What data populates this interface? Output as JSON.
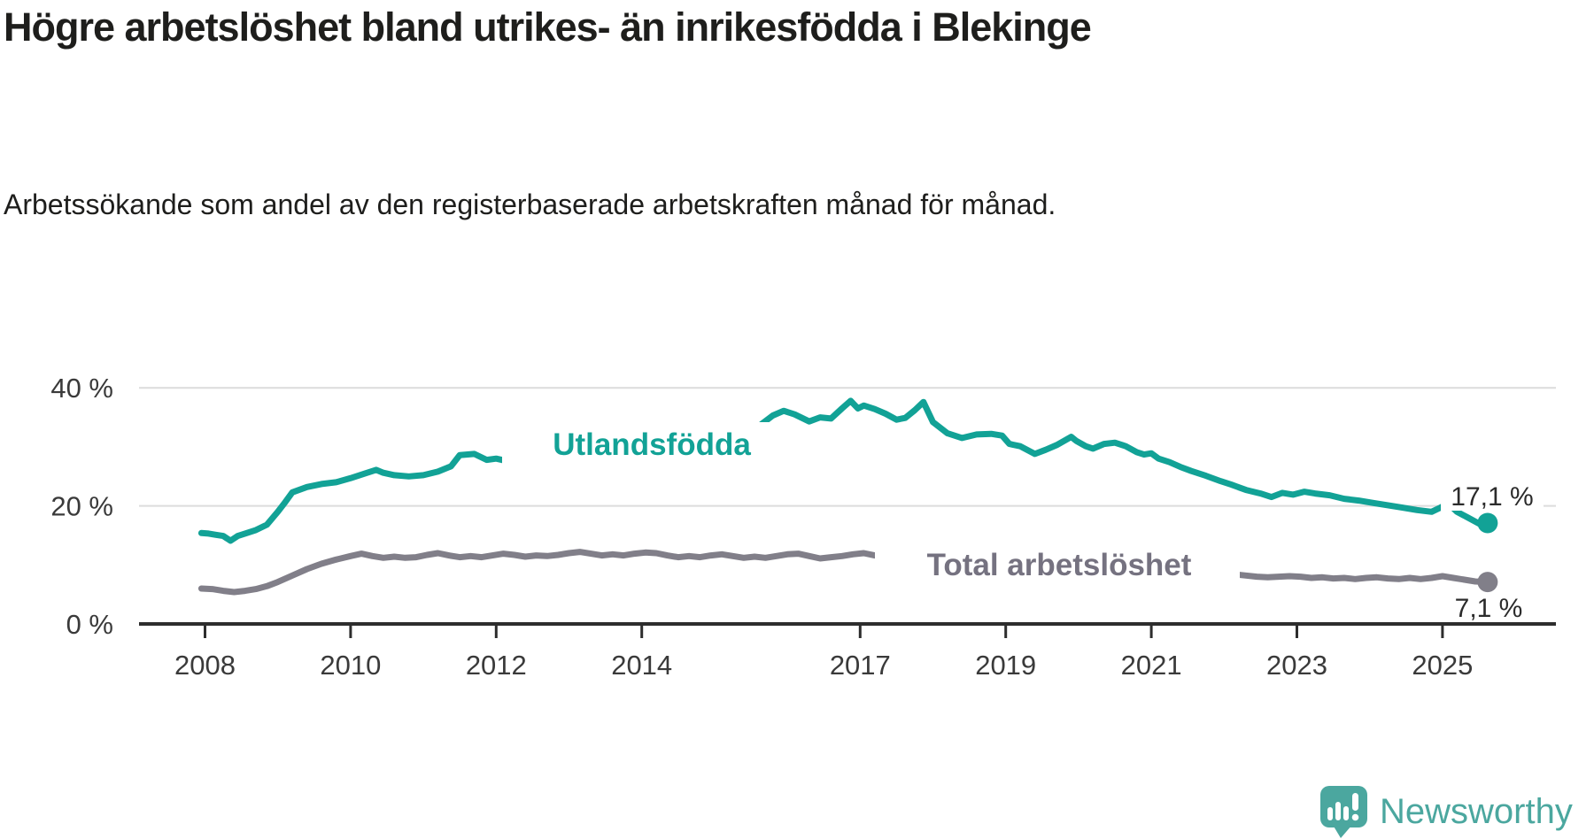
{
  "header": {
    "title": "Högre arbetslöshet bland utrikes- än inrikesfödda i Blekinge",
    "subtitle": "Arbetssökande som andel av den registerbaserade arbetskraften månad för månad."
  },
  "chart_data": {
    "type": "line",
    "title": "Högre arbetslöshet bland utrikes- än inrikesfödda i Blekinge",
    "subtitle": "Arbetssökande som andel av den registerbaserade arbetskraften månad för månad.",
    "unit": "%",
    "grid": "horizontal-only",
    "x_axis": {
      "ticks": [
        2008,
        2010,
        2012,
        2014,
        2017,
        2019,
        2021,
        2023,
        2025
      ]
    },
    "y_axis": {
      "range": [
        0,
        44
      ],
      "ticks": [
        {
          "value": 0,
          "label": "0 %"
        },
        {
          "value": 20,
          "label": "20 %"
        },
        {
          "value": 40,
          "label": "40 %"
        }
      ]
    },
    "series": [
      {
        "name": "Utlandsfödda",
        "color": "#12a296",
        "end_label": "17,1 %",
        "end_value": 17.1,
        "points": [
          [
            2007.95,
            15.4
          ],
          [
            2008.05,
            15.3
          ],
          [
            2008.15,
            15.1
          ],
          [
            2008.25,
            14.9
          ],
          [
            2008.35,
            14.1
          ],
          [
            2008.45,
            14.9
          ],
          [
            2008.55,
            15.3
          ],
          [
            2008.7,
            15.9
          ],
          [
            2008.85,
            16.8
          ],
          [
            2009.0,
            19.0
          ],
          [
            2009.1,
            20.6
          ],
          [
            2009.2,
            22.3
          ],
          [
            2009.4,
            23.2
          ],
          [
            2009.6,
            23.7
          ],
          [
            2009.8,
            24.0
          ],
          [
            2010.0,
            24.7
          ],
          [
            2010.2,
            25.5
          ],
          [
            2010.35,
            26.1
          ],
          [
            2010.45,
            25.6
          ],
          [
            2010.6,
            25.2
          ],
          [
            2010.8,
            25.0
          ],
          [
            2011.0,
            25.2
          ],
          [
            2011.2,
            25.8
          ],
          [
            2011.38,
            26.7
          ],
          [
            2011.5,
            28.6
          ],
          [
            2011.7,
            28.8
          ],
          [
            2011.87,
            27.8
          ],
          [
            2012.0,
            28.0
          ],
          [
            2012.15,
            27.6
          ],
          [
            2012.3,
            28.1
          ],
          [
            2012.45,
            29.4
          ],
          [
            2012.6,
            29.0
          ],
          [
            2012.75,
            28.1
          ],
          [
            2012.9,
            28.3
          ],
          [
            2013.05,
            28.8
          ],
          [
            2013.25,
            29.3
          ],
          [
            2013.45,
            28.6
          ],
          [
            2013.65,
            28.9
          ],
          [
            2013.85,
            28.7
          ],
          [
            2014.05,
            29.1
          ],
          [
            2014.2,
            29.5
          ],
          [
            2014.4,
            28.9
          ],
          [
            2014.55,
            28.5
          ],
          [
            2014.7,
            28.8
          ],
          [
            2014.9,
            29.2
          ],
          [
            2015.05,
            29.6
          ],
          [
            2015.2,
            30.1
          ],
          [
            2015.35,
            31.0
          ],
          [
            2015.5,
            32.3
          ],
          [
            2015.65,
            33.9
          ],
          [
            2015.8,
            35.3
          ],
          [
            2015.95,
            36.1
          ],
          [
            2016.1,
            35.5
          ],
          [
            2016.3,
            34.3
          ],
          [
            2016.45,
            35.0
          ],
          [
            2016.6,
            34.8
          ],
          [
            2016.75,
            36.5
          ],
          [
            2016.87,
            37.8
          ],
          [
            2016.97,
            36.5
          ],
          [
            2017.05,
            37.0
          ],
          [
            2017.2,
            36.4
          ],
          [
            2017.35,
            35.6
          ],
          [
            2017.5,
            34.6
          ],
          [
            2017.62,
            34.9
          ],
          [
            2017.75,
            36.2
          ],
          [
            2017.87,
            37.6
          ],
          [
            2018.0,
            34.2
          ],
          [
            2018.2,
            32.3
          ],
          [
            2018.4,
            31.5
          ],
          [
            2018.6,
            32.1
          ],
          [
            2018.8,
            32.2
          ],
          [
            2018.95,
            31.9
          ],
          [
            2019.05,
            30.5
          ],
          [
            2019.2,
            30.1
          ],
          [
            2019.4,
            28.8
          ],
          [
            2019.55,
            29.5
          ],
          [
            2019.7,
            30.3
          ],
          [
            2019.9,
            31.7
          ],
          [
            2019.97,
            31.0
          ],
          [
            2020.1,
            30.1
          ],
          [
            2020.2,
            29.7
          ],
          [
            2020.35,
            30.5
          ],
          [
            2020.5,
            30.7
          ],
          [
            2020.65,
            30.1
          ],
          [
            2020.8,
            29.1
          ],
          [
            2020.9,
            28.7
          ],
          [
            2021.0,
            28.9
          ],
          [
            2021.1,
            28.0
          ],
          [
            2021.25,
            27.4
          ],
          [
            2021.4,
            26.6
          ],
          [
            2021.55,
            25.9
          ],
          [
            2021.75,
            25.1
          ],
          [
            2021.95,
            24.2
          ],
          [
            2022.1,
            23.6
          ],
          [
            2022.3,
            22.7
          ],
          [
            2022.5,
            22.1
          ],
          [
            2022.65,
            21.5
          ],
          [
            2022.8,
            22.2
          ],
          [
            2022.95,
            21.9
          ],
          [
            2023.1,
            22.4
          ],
          [
            2023.25,
            22.1
          ],
          [
            2023.45,
            21.8
          ],
          [
            2023.65,
            21.2
          ],
          [
            2023.85,
            20.9
          ],
          [
            2024.05,
            20.5
          ],
          [
            2024.25,
            20.1
          ],
          [
            2024.45,
            19.7
          ],
          [
            2024.65,
            19.3
          ],
          [
            2024.85,
            19.0
          ],
          [
            2024.97,
            19.7
          ],
          [
            2025.08,
            20.4
          ],
          [
            2025.2,
            19.0
          ],
          [
            2025.35,
            18.0
          ],
          [
            2025.5,
            17.0
          ],
          [
            2025.62,
            17.1
          ]
        ]
      },
      {
        "name": "Total arbetslöshet",
        "color": "#817f89",
        "end_label": "7,1 %",
        "end_value": 7.1,
        "points": [
          [
            2007.95,
            6.0
          ],
          [
            2008.1,
            5.9
          ],
          [
            2008.25,
            5.6
          ],
          [
            2008.4,
            5.4
          ],
          [
            2008.55,
            5.6
          ],
          [
            2008.7,
            5.9
          ],
          [
            2008.85,
            6.4
          ],
          [
            2009.0,
            7.1
          ],
          [
            2009.2,
            8.2
          ],
          [
            2009.4,
            9.3
          ],
          [
            2009.6,
            10.2
          ],
          [
            2009.8,
            10.9
          ],
          [
            2010.0,
            11.5
          ],
          [
            2010.15,
            11.9
          ],
          [
            2010.3,
            11.5
          ],
          [
            2010.45,
            11.2
          ],
          [
            2010.6,
            11.4
          ],
          [
            2010.75,
            11.2
          ],
          [
            2010.9,
            11.3
          ],
          [
            2011.05,
            11.7
          ],
          [
            2011.2,
            12.0
          ],
          [
            2011.35,
            11.6
          ],
          [
            2011.5,
            11.3
          ],
          [
            2011.65,
            11.5
          ],
          [
            2011.8,
            11.3
          ],
          [
            2011.95,
            11.6
          ],
          [
            2012.1,
            11.9
          ],
          [
            2012.25,
            11.7
          ],
          [
            2012.4,
            11.4
          ],
          [
            2012.55,
            11.6
          ],
          [
            2012.7,
            11.5
          ],
          [
            2012.85,
            11.7
          ],
          [
            2013.0,
            12.0
          ],
          [
            2013.15,
            12.2
          ],
          [
            2013.3,
            11.9
          ],
          [
            2013.45,
            11.6
          ],
          [
            2013.6,
            11.8
          ],
          [
            2013.75,
            11.6
          ],
          [
            2013.9,
            11.9
          ],
          [
            2014.05,
            12.1
          ],
          [
            2014.2,
            12.0
          ],
          [
            2014.35,
            11.6
          ],
          [
            2014.5,
            11.3
          ],
          [
            2014.65,
            11.5
          ],
          [
            2014.8,
            11.3
          ],
          [
            2014.95,
            11.6
          ],
          [
            2015.1,
            11.8
          ],
          [
            2015.25,
            11.5
          ],
          [
            2015.4,
            11.2
          ],
          [
            2015.55,
            11.4
          ],
          [
            2015.7,
            11.2
          ],
          [
            2015.85,
            11.5
          ],
          [
            2016.0,
            11.8
          ],
          [
            2016.15,
            11.9
          ],
          [
            2016.3,
            11.5
          ],
          [
            2016.45,
            11.1
          ],
          [
            2016.6,
            11.3
          ],
          [
            2016.75,
            11.5
          ],
          [
            2016.9,
            11.8
          ],
          [
            2017.05,
            12.0
          ],
          [
            2017.2,
            11.6
          ],
          [
            2017.35,
            11.3
          ],
          [
            2017.5,
            11.1
          ],
          [
            2017.65,
            11.3
          ],
          [
            2017.8,
            11.1
          ],
          [
            2017.95,
            11.4
          ],
          [
            2018.1,
            11.1
          ],
          [
            2018.25,
            10.9
          ],
          [
            2018.4,
            10.7
          ],
          [
            2018.55,
            10.6
          ],
          [
            2018.7,
            10.7
          ],
          [
            2018.85,
            10.9
          ],
          [
            2019.0,
            11.0
          ],
          [
            2019.15,
            10.8
          ],
          [
            2019.3,
            10.5
          ],
          [
            2019.45,
            10.3
          ],
          [
            2019.6,
            10.4
          ],
          [
            2019.75,
            10.2
          ],
          [
            2019.9,
            10.4
          ],
          [
            2020.05,
            10.6
          ],
          [
            2020.2,
            10.9
          ],
          [
            2020.35,
            11.2
          ],
          [
            2020.5,
            11.0
          ],
          [
            2020.65,
            10.8
          ],
          [
            2020.8,
            10.7
          ],
          [
            2020.95,
            10.8
          ],
          [
            2021.1,
            10.5
          ],
          [
            2021.25,
            10.2
          ],
          [
            2021.4,
            9.9
          ],
          [
            2021.55,
            9.6
          ],
          [
            2021.7,
            9.3
          ],
          [
            2021.85,
            9.0
          ],
          [
            2022.0,
            8.6
          ],
          [
            2022.15,
            8.4
          ],
          [
            2022.3,
            8.2
          ],
          [
            2022.45,
            8.0
          ],
          [
            2022.6,
            7.9
          ],
          [
            2022.75,
            8.0
          ],
          [
            2022.9,
            8.1
          ],
          [
            2023.05,
            8.0
          ],
          [
            2023.2,
            7.8
          ],
          [
            2023.35,
            7.9
          ],
          [
            2023.5,
            7.7
          ],
          [
            2023.65,
            7.8
          ],
          [
            2023.8,
            7.6
          ],
          [
            2023.95,
            7.8
          ],
          [
            2024.1,
            7.9
          ],
          [
            2024.25,
            7.7
          ],
          [
            2024.4,
            7.6
          ],
          [
            2024.55,
            7.8
          ],
          [
            2024.7,
            7.6
          ],
          [
            2024.85,
            7.8
          ],
          [
            2025.0,
            8.1
          ],
          [
            2025.15,
            7.8
          ],
          [
            2025.3,
            7.5
          ],
          [
            2025.45,
            7.2
          ],
          [
            2025.62,
            7.1
          ]
        ]
      }
    ],
    "colors": {
      "accent_teal": "#12a296",
      "line_gray": "#817f89",
      "axis": "#2d2d2d",
      "gridline": "#dcdcdc",
      "tick_text": "#3a3a3a",
      "text": "#1e1e1c"
    }
  },
  "branding": {
    "logo_text": "Newsworthy",
    "logo_color": "#4ba79f",
    "logo_icon": "speech-bubble-bar-chart-exclamation"
  }
}
